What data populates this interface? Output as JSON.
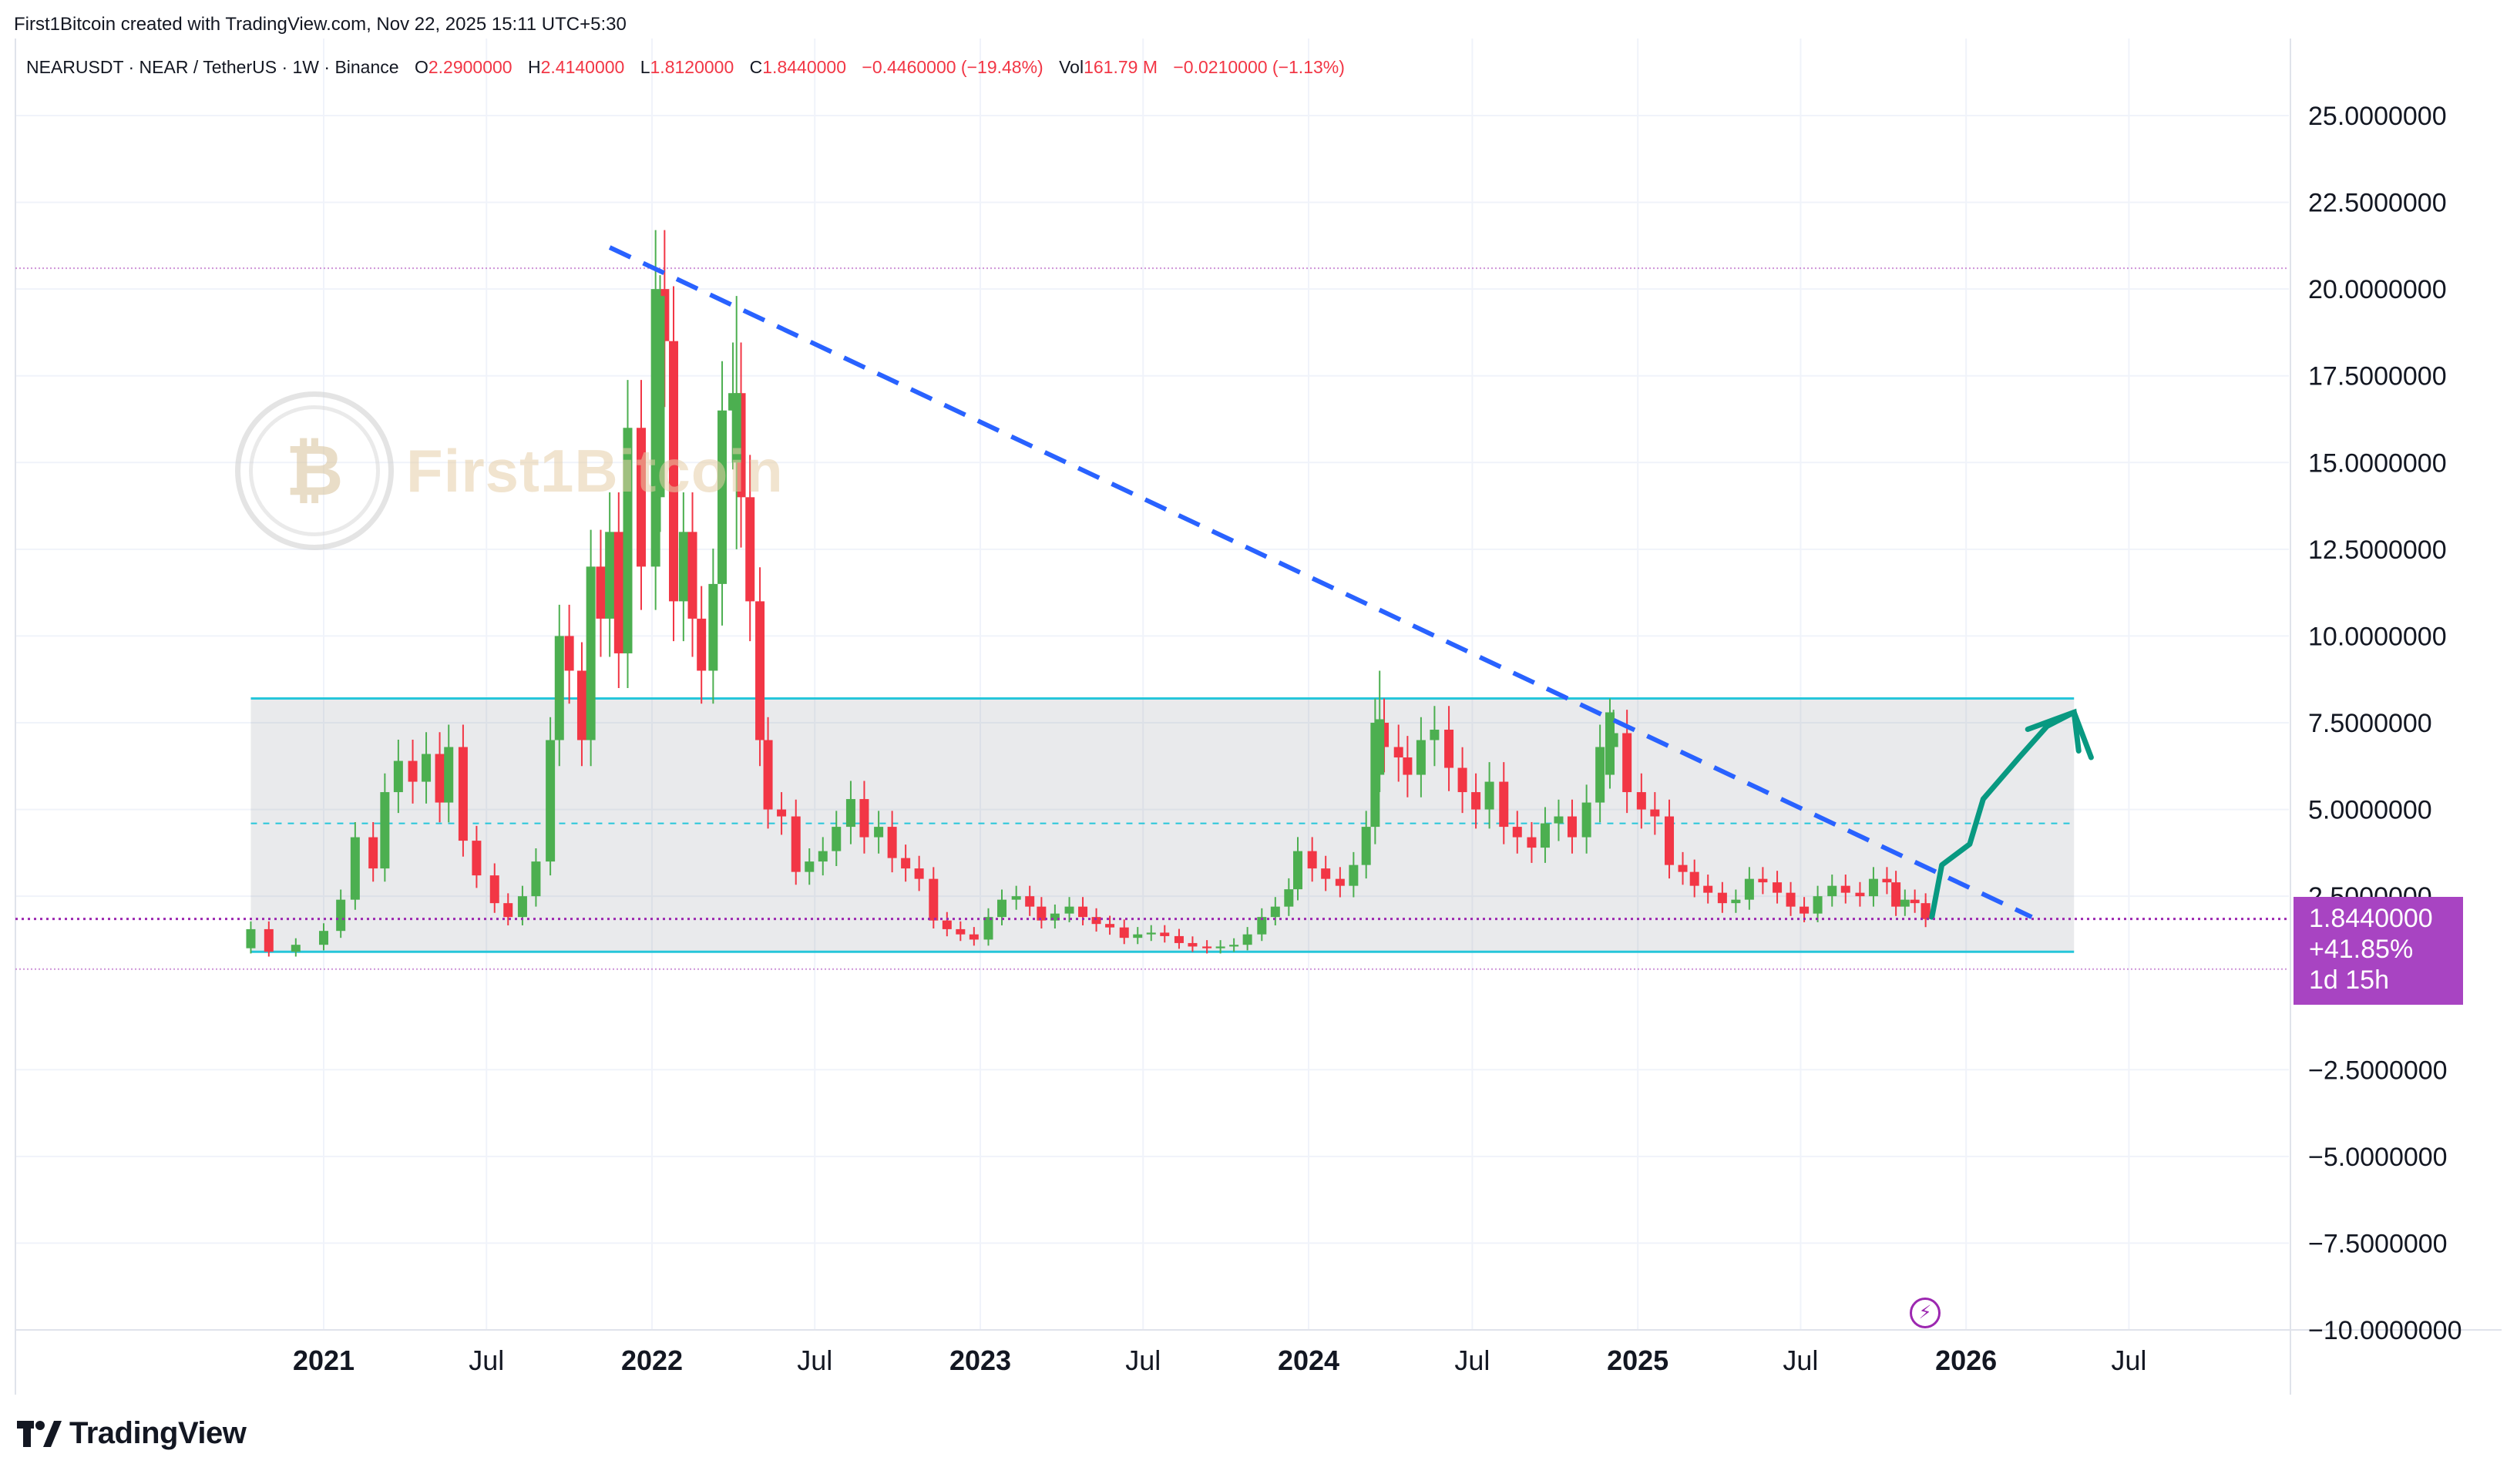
{
  "attribution": "First1Bitcoin created with TradingView.com, Nov 22, 2025 15:11 UTC+5:30",
  "legend": {
    "symbol": "NEARUSDT · NEAR / TetherUS · 1W · Binance",
    "open_label": "O",
    "open": "2.2900000",
    "high_label": "H",
    "high": "2.4140000",
    "low_label": "L",
    "low": "1.8120000",
    "close_label": "C",
    "close": "1.8440000",
    "change": "−0.4460000 (−19.48%)",
    "vol_label": "Vol",
    "vol": "161.79 M",
    "vol_change": "−0.0210000 (−1.13%)"
  },
  "watermark": {
    "mark": "₿",
    "text": "First1Bitcoin"
  },
  "price_tag": {
    "price": "1.8440000",
    "change": "+41.85%",
    "countdown": "1d 15h"
  },
  "branding": "TradingView",
  "colors": {
    "up": "#4caf50",
    "down": "#f23645",
    "channel": "#26c6da",
    "trendline": "#2962ff",
    "projection": "#089981",
    "price_line": "#9c27b0",
    "tag": "#a844c2"
  },
  "chart_data": {
    "type": "candlestick",
    "symbol": "NEARUSDT",
    "timeframe": "1W",
    "ylim": [
      -10,
      27.5
    ],
    "y_ticks": [
      "25.0000000",
      "22.5000000",
      "20.0000000",
      "17.5000000",
      "15.0000000",
      "12.5000000",
      "10.0000000",
      "7.5000000",
      "5.0000000",
      "2.5000000",
      "−2.5000000",
      "−5.0000000",
      "−7.5000000",
      "−10.0000000"
    ],
    "y_tick_values": [
      25,
      22.5,
      20,
      17.5,
      15,
      12.5,
      10,
      7.5,
      5,
      2.5,
      -2.5,
      -5,
      -7.5,
      -10
    ],
    "x_ticks": [
      {
        "label": "2021",
        "date": "2021-01-01",
        "bold": true
      },
      {
        "label": "Jul",
        "date": "2021-07-01",
        "bold": false
      },
      {
        "label": "2022",
        "date": "2022-01-01",
        "bold": true
      },
      {
        "label": "Jul",
        "date": "2022-07-01",
        "bold": false
      },
      {
        "label": "2023",
        "date": "2023-01-01",
        "bold": true
      },
      {
        "label": "Jul",
        "date": "2023-07-01",
        "bold": false
      },
      {
        "label": "2024",
        "date": "2024-01-01",
        "bold": true
      },
      {
        "label": "Jul",
        "date": "2024-07-01",
        "bold": false
      },
      {
        "label": "2025",
        "date": "2025-01-01",
        "bold": true
      },
      {
        "label": "Jul",
        "date": "2025-07-01",
        "bold": false
      },
      {
        "label": "2026",
        "date": "2026-01-01",
        "bold": true
      },
      {
        "label": "Jul",
        "date": "2026-07-01",
        "bold": false
      }
    ],
    "weekly_closes": [
      {
        "date": "2020-10-12",
        "open": 1.0,
        "close": 1.55
      },
      {
        "date": "2020-11-01",
        "close": 0.9
      },
      {
        "date": "2020-12-01",
        "close": 1.1
      },
      {
        "date": "2021-01-01",
        "close": 1.5
      },
      {
        "date": "2021-01-20",
        "close": 2.4
      },
      {
        "date": "2021-02-05",
        "close": 4.2
      },
      {
        "date": "2021-02-25",
        "close": 3.3
      },
      {
        "date": "2021-03-10",
        "close": 5.5
      },
      {
        "date": "2021-03-25",
        "close": 6.4
      },
      {
        "date": "2021-04-10",
        "close": 5.8
      },
      {
        "date": "2021-04-25",
        "close": 6.6
      },
      {
        "date": "2021-05-10",
        "close": 5.2
      },
      {
        "date": "2021-05-20",
        "close": 6.8
      },
      {
        "date": "2021-06-05",
        "close": 4.1
      },
      {
        "date": "2021-06-20",
        "close": 3.1
      },
      {
        "date": "2021-07-10",
        "close": 2.3
      },
      {
        "date": "2021-07-25",
        "close": 1.9
      },
      {
        "date": "2021-08-10",
        "close": 2.5
      },
      {
        "date": "2021-08-25",
        "close": 3.5
      },
      {
        "date": "2021-09-10",
        "close": 7.0
      },
      {
        "date": "2021-09-20",
        "close": 10.0
      },
      {
        "date": "2021-10-01",
        "close": 9.0
      },
      {
        "date": "2021-10-15",
        "close": 7.0
      },
      {
        "date": "2021-10-25",
        "close": 12.0
      },
      {
        "date": "2021-11-05",
        "close": 10.5
      },
      {
        "date": "2021-11-15",
        "close": 13.0
      },
      {
        "date": "2021-11-25",
        "close": 9.5
      },
      {
        "date": "2021-12-05",
        "close": 16.0
      },
      {
        "date": "2021-12-20",
        "close": 12.0
      },
      {
        "date": "2022-01-05",
        "close": 20.0
      },
      {
        "date": "2022-01-15",
        "close": 18.5
      },
      {
        "date": "2022-01-25",
        "close": 11.0
      },
      {
        "date": "2022-02-05",
        "close": 13.0
      },
      {
        "date": "2022-02-15",
        "close": 10.5
      },
      {
        "date": "2022-02-25",
        "close": 9.0
      },
      {
        "date": "2022-03-10",
        "close": 11.5
      },
      {
        "date": "2022-03-20",
        "close": 16.5
      },
      {
        "date": "2022-04-01",
        "close": 17.0
      },
      {
        "date": "2022-04-10",
        "close": 14.0
      },
      {
        "date": "2022-04-20",
        "close": 11.0
      },
      {
        "date": "2022-05-01",
        "close": 7.0
      },
      {
        "date": "2022-05-10",
        "close": 5.0
      },
      {
        "date": "2022-05-25",
        "close": 4.8
      },
      {
        "date": "2022-06-10",
        "close": 3.2
      },
      {
        "date": "2022-06-25",
        "close": 3.5
      },
      {
        "date": "2022-07-10",
        "close": 3.8
      },
      {
        "date": "2022-07-25",
        "close": 4.5
      },
      {
        "date": "2022-08-10",
        "close": 5.3
      },
      {
        "date": "2022-08-25",
        "close": 4.2
      },
      {
        "date": "2022-09-10",
        "close": 4.5
      },
      {
        "date": "2022-09-25",
        "close": 3.6
      },
      {
        "date": "2022-10-10",
        "close": 3.3
      },
      {
        "date": "2022-10-25",
        "close": 3.0
      },
      {
        "date": "2022-11-10",
        "close": 1.8
      },
      {
        "date": "2022-11-25",
        "close": 1.55
      },
      {
        "date": "2022-12-10",
        "close": 1.4
      },
      {
        "date": "2022-12-25",
        "close": 1.25
      },
      {
        "date": "2023-01-10",
        "close": 1.9
      },
      {
        "date": "2023-01-25",
        "close": 2.4
      },
      {
        "date": "2023-02-10",
        "close": 2.5
      },
      {
        "date": "2023-02-25",
        "close": 2.2
      },
      {
        "date": "2023-03-10",
        "close": 1.8
      },
      {
        "date": "2023-03-25",
        "close": 2.0
      },
      {
        "date": "2023-04-10",
        "close": 2.2
      },
      {
        "date": "2023-04-25",
        "close": 1.9
      },
      {
        "date": "2023-05-10",
        "close": 1.7
      },
      {
        "date": "2023-05-25",
        "close": 1.6
      },
      {
        "date": "2023-06-10",
        "close": 1.3
      },
      {
        "date": "2023-06-25",
        "close": 1.4
      },
      {
        "date": "2023-07-10",
        "close": 1.45
      },
      {
        "date": "2023-07-25",
        "close": 1.35
      },
      {
        "date": "2023-08-10",
        "close": 1.15
      },
      {
        "date": "2023-08-25",
        "close": 1.05
      },
      {
        "date": "2023-09-10",
        "close": 1.0
      },
      {
        "date": "2023-09-25",
        "close": 1.05
      },
      {
        "date": "2023-10-10",
        "close": 1.1
      },
      {
        "date": "2023-10-25",
        "close": 1.4
      },
      {
        "date": "2023-11-10",
        "close": 1.9
      },
      {
        "date": "2023-11-25",
        "close": 2.2
      },
      {
        "date": "2023-12-10",
        "close": 2.7
      },
      {
        "date": "2023-12-20",
        "close": 3.8
      },
      {
        "date": "2024-01-05",
        "close": 3.3
      },
      {
        "date": "2024-01-20",
        "close": 3.0
      },
      {
        "date": "2024-02-05",
        "close": 2.8
      },
      {
        "date": "2024-02-20",
        "close": 3.4
      },
      {
        "date": "2024-03-05",
        "close": 4.5
      },
      {
        "date": "2024-03-15",
        "close": 7.5
      },
      {
        "date": "2024-03-25",
        "close": 6.8
      },
      {
        "date": "2024-04-10",
        "close": 6.5
      },
      {
        "date": "2024-04-20",
        "close": 6.0
      },
      {
        "date": "2024-05-05",
        "close": 7.0
      },
      {
        "date": "2024-05-20",
        "close": 7.3
      },
      {
        "date": "2024-06-05",
        "close": 6.2
      },
      {
        "date": "2024-06-20",
        "close": 5.5
      },
      {
        "date": "2024-07-05",
        "close": 5.0
      },
      {
        "date": "2024-07-20",
        "close": 5.8
      },
      {
        "date": "2024-08-05",
        "close": 4.5
      },
      {
        "date": "2024-08-20",
        "close": 4.2
      },
      {
        "date": "2024-09-05",
        "close": 3.9
      },
      {
        "date": "2024-09-20",
        "close": 4.6
      },
      {
        "date": "2024-10-05",
        "close": 4.8
      },
      {
        "date": "2024-10-20",
        "close": 4.2
      },
      {
        "date": "2024-11-05",
        "close": 5.2
      },
      {
        "date": "2024-11-20",
        "close": 6.8
      },
      {
        "date": "2024-12-05",
        "close": 7.2
      },
      {
        "date": "2024-12-20",
        "close": 5.5
      },
      {
        "date": "2025-01-05",
        "close": 5.0
      },
      {
        "date": "2025-01-20",
        "close": 4.8
      },
      {
        "date": "2025-02-05",
        "close": 3.4
      },
      {
        "date": "2025-02-20",
        "close": 3.2
      },
      {
        "date": "2025-03-05",
        "close": 2.8
      },
      {
        "date": "2025-03-20",
        "close": 2.6
      },
      {
        "date": "2025-04-05",
        "close": 2.3
      },
      {
        "date": "2025-04-20",
        "close": 2.4
      },
      {
        "date": "2025-05-05",
        "close": 3.0
      },
      {
        "date": "2025-05-20",
        "close": 2.9
      },
      {
        "date": "2025-06-05",
        "close": 2.6
      },
      {
        "date": "2025-06-20",
        "close": 2.2
      },
      {
        "date": "2025-07-05",
        "close": 2.0
      },
      {
        "date": "2025-07-20",
        "close": 2.5
      },
      {
        "date": "2025-08-05",
        "close": 2.8
      },
      {
        "date": "2025-08-20",
        "close": 2.6
      },
      {
        "date": "2025-09-05",
        "close": 2.5
      },
      {
        "date": "2025-09-20",
        "close": 3.0
      },
      {
        "date": "2025-10-05",
        "close": 2.9
      },
      {
        "date": "2025-10-15",
        "close": 2.2
      },
      {
        "date": "2025-10-25",
        "close": 2.4
      },
      {
        "date": "2025-11-05",
        "close": 2.3
      },
      {
        "date": "2025-11-17",
        "close": 1.844
      }
    ],
    "highlighted_candles": [
      {
        "date": "2022-01-10",
        "open": 14.0,
        "high": 20.4,
        "low": 13.0,
        "close": 19.8
      },
      {
        "date": "2022-04-05",
        "open": 15.0,
        "high": 19.8,
        "low": 12.5,
        "close": 17.0
      },
      {
        "date": "2024-03-20",
        "open": 6.0,
        "high": 9.0,
        "low": 5.5,
        "close": 7.6
      },
      {
        "date": "2024-12-01",
        "open": 6.0,
        "high": 8.2,
        "low": 5.6,
        "close": 7.8
      },
      {
        "date": "2025-11-17",
        "open": 2.29,
        "high": 2.414,
        "low": 1.812,
        "close": 1.844
      }
    ],
    "current_price": 1.844,
    "channel": {
      "start": "2020-10-12",
      "end": "2026-05-01",
      "top": 8.2,
      "mid": 4.6,
      "bottom": 0.9
    },
    "horizontal_lines": [
      20.6,
      0.4
    ],
    "trendline": {
      "from": {
        "date": "2021-11-15",
        "value": 21.2
      },
      "to": {
        "date": "2026-03-15",
        "value": 1.9
      }
    },
    "projection_path": [
      {
        "date": "2025-11-24",
        "value": 1.9
      },
      {
        "date": "2025-12-05",
        "value": 3.4
      },
      {
        "date": "2026-01-05",
        "value": 4.0
      },
      {
        "date": "2026-01-20",
        "value": 5.3
      },
      {
        "date": "2026-03-01",
        "value": 6.5
      },
      {
        "date": "2026-04-01",
        "value": 7.4
      },
      {
        "date": "2026-05-01",
        "value": 7.8
      },
      {
        "date": "2026-05-20",
        "value": 6.5
      }
    ]
  }
}
